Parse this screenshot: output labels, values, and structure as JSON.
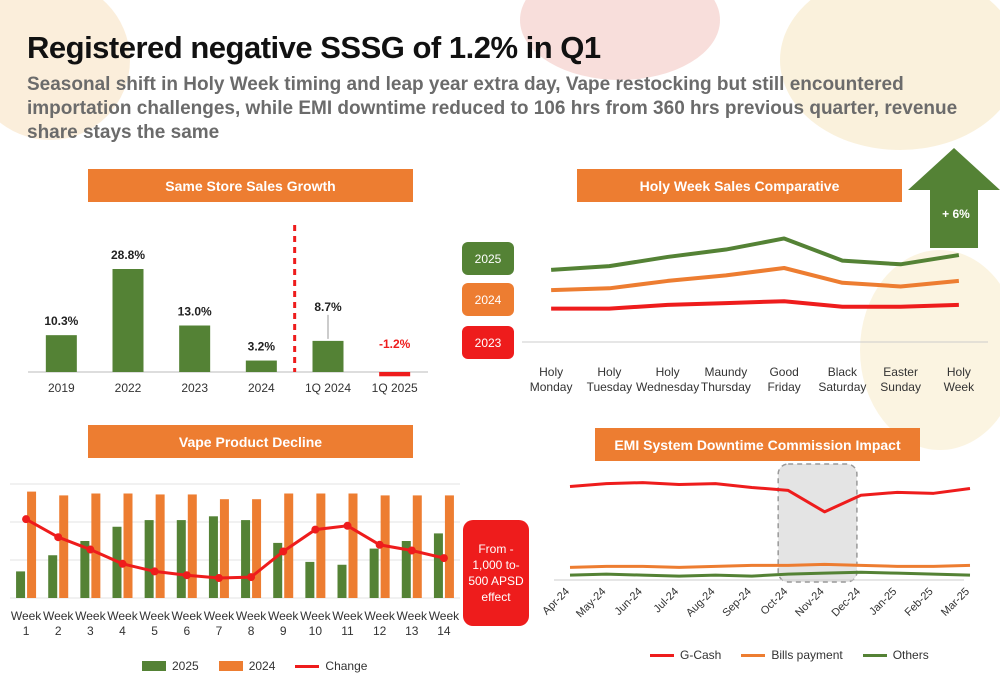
{
  "header": {
    "title": "Registered negative SSSG of 1.2% in Q1",
    "subtitle": "Seasonal shift in Holy Week timing and leap year extra day, Vape restocking but still encountered importation challenges, while EMI downtime reduced to 106 hrs from 360 hrs previous quarter, revenue share stays the same"
  },
  "colors": {
    "accent": "#ed7d31",
    "green": "#548235",
    "red": "#ee1c1c",
    "grey_text": "#6b6b6b"
  },
  "panels": {
    "sssg_title": "Same Store Sales Growth",
    "holy_title": "Holy Week Sales Comparative",
    "vape_title": "Vape Product Decline",
    "emi_title": "EMI System Downtime Commission Impact"
  },
  "holy_years": [
    "2025",
    "2024",
    "2023"
  ],
  "holy_arrow_label": "+ 6%",
  "vape_note": "From - 1,000 to- 500 APSD effect",
  "vape_legend": [
    "2025",
    "2024",
    "Change"
  ],
  "emi_legend": [
    "G-Cash",
    "Bills payment",
    "Others"
  ],
  "chart_data": [
    {
      "type": "bar",
      "title": "Same Store Sales Growth",
      "categories": [
        "2019",
        "2022",
        "2023",
        "2024",
        "1Q 2024",
        "1Q 2025"
      ],
      "values": [
        10.3,
        28.8,
        13.0,
        3.2,
        8.7,
        -1.2
      ],
      "labels": [
        "10.3%",
        "28.8%",
        "13.0%",
        "3.2%",
        "8.7%",
        "-1.2%"
      ],
      "ylim": [
        -2,
        32
      ],
      "separator_after_index": 3
    },
    {
      "type": "line",
      "title": "Holy Week Sales Comparative",
      "categories": [
        "Holy Monday",
        "Holy Tuesday",
        "Holy Wednesday",
        "Maundy Thursday",
        "Good Friday",
        "Black Saturday",
        "Easter Sunday",
        "Holy Week"
      ],
      "series": [
        {
          "name": "2025",
          "values": [
            88,
            90,
            95,
            99,
            105,
            93,
            91,
            96
          ]
        },
        {
          "name": "2024",
          "values": [
            77,
            78,
            82,
            85,
            89,
            81,
            79,
            82
          ]
        },
        {
          "name": "2023",
          "values": [
            67,
            67,
            69,
            70,
            71,
            68,
            68,
            69
          ]
        }
      ],
      "ylim": [
        50,
        115
      ]
    },
    {
      "type": "bar",
      "title": "Vape Product Decline",
      "categories": [
        "Week 1",
        "Week 2",
        "Week 3",
        "Week 4",
        "Week 5",
        "Week 6",
        "Week 7",
        "Week 8",
        "Week 9",
        "Week 10",
        "Week 11",
        "Week 12",
        "Week 13",
        "Week 14"
      ],
      "series": [
        {
          "name": "2025",
          "kind": "bar",
          "values": [
            28,
            45,
            60,
            75,
            82,
            82,
            86,
            82,
            58,
            38,
            35,
            52,
            60,
            68
          ]
        },
        {
          "name": "2024",
          "kind": "bar",
          "values": [
            112,
            108,
            110,
            110,
            109,
            109,
            104,
            104,
            110,
            110,
            110,
            108,
            108,
            108
          ]
        },
        {
          "name": "Change",
          "kind": "line",
          "values": [
            83,
            64,
            51,
            36,
            28,
            24,
            21,
            22,
            49,
            72,
            76,
            56,
            50,
            42
          ]
        }
      ],
      "ylim": [
        0,
        120
      ]
    },
    {
      "type": "line",
      "title": "EMI System Downtime Commission Impact",
      "categories": [
        "Apr-24",
        "May-24",
        "Jun-24",
        "Jul-24",
        "Aug-24",
        "Sep-24",
        "Oct-24",
        "Nov-24",
        "Dec-24",
        "Jan-25",
        "Feb-25",
        "Mar-25"
      ],
      "series": [
        {
          "name": "G-Cash",
          "values": [
            96,
            99,
            100,
            98,
            99,
            95,
            92,
            70,
            87,
            90,
            89,
            94
          ]
        },
        {
          "name": "Bills payment",
          "values": [
            13,
            14,
            14,
            13,
            14,
            15,
            15,
            16,
            15,
            14,
            14,
            15
          ]
        },
        {
          "name": "Others",
          "values": [
            5,
            6,
            5,
            4,
            5,
            4,
            6,
            7,
            8,
            7,
            6,
            5
          ]
        }
      ],
      "ylim": [
        0,
        115
      ],
      "highlight_range": [
        "Oct-24",
        "Dec-24"
      ]
    }
  ]
}
